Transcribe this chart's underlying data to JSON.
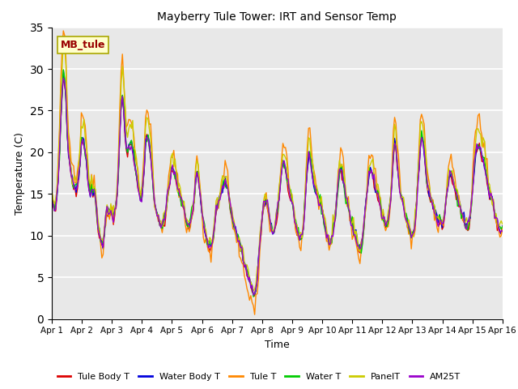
{
  "title": "Mayberry Tule Tower: IRT and Sensor Temp",
  "xlabel": "Time",
  "ylabel": "Temperature (C)",
  "ylim": [
    0,
    35
  ],
  "yticks": [
    0,
    5,
    10,
    15,
    20,
    25,
    30,
    35
  ],
  "annotation_text": "MB_tule",
  "plot_bg_color": "#e8e8e8",
  "grid_color": "white",
  "series_colors": {
    "Tule Body T": "#dd0000",
    "Water Body T": "#0000dd",
    "Tule T": "#ff8800",
    "Water T": "#00cc00",
    "PanelT": "#cccc00",
    "AM25T": "#9900cc"
  },
  "xtick_labels": [
    "Apr 1",
    "Apr 2",
    "Apr 3",
    "Apr 4",
    "Apr 5",
    "Apr 6",
    "Apr 7",
    "Apr 8",
    "Apr 9",
    "Apr 10",
    "Apr 11",
    "Apr 12",
    "Apr 13",
    "Apr 14",
    "Apr 15",
    "Apr 16"
  ],
  "base_pattern": [
    14.5,
    13.5,
    13.0,
    13.5,
    15.0,
    17.0,
    20.0,
    24.0,
    27.0,
    29.2,
    28.5,
    26.5,
    22.0,
    19.5,
    18.5,
    17.5,
    16.5,
    16.0,
    15.5,
    15.0,
    16.0,
    17.0,
    18.5,
    21.0,
    21.5,
    21.0,
    20.0,
    19.0,
    17.0,
    15.5,
    15.0,
    15.5,
    15.0,
    15.5,
    14.5,
    13.0,
    11.0,
    10.0,
    9.5,
    9.0,
    9.0,
    10.5,
    12.0,
    13.0,
    12.5,
    12.5,
    13.0,
    12.5,
    12.0,
    12.5,
    13.5,
    15.0,
    18.0,
    22.0,
    25.5,
    26.5,
    25.0,
    22.5,
    20.5,
    20.0,
    20.5,
    20.5,
    21.0,
    20.0,
    19.0,
    18.0,
    17.0,
    16.0,
    15.0,
    14.0,
    14.5,
    16.0,
    18.0,
    21.0,
    22.0,
    21.5,
    20.5,
    19.5,
    18.0,
    15.5,
    14.0,
    13.0,
    12.5,
    12.0,
    11.5,
    11.0,
    11.0,
    11.5,
    12.0,
    13.0,
    14.5,
    15.5,
    16.5,
    17.5,
    18.0,
    17.5,
    17.0,
    16.5,
    15.5,
    15.0,
    14.5,
    14.0,
    13.5,
    13.0,
    12.0,
    11.5,
    11.0,
    11.0,
    11.5,
    12.0,
    13.0,
    14.5,
    16.5,
    17.5,
    17.0,
    15.5,
    14.0,
    12.5,
    11.5,
    10.5,
    10.0,
    9.5,
    9.0,
    8.5,
    8.5,
    9.0,
    10.0,
    11.5,
    13.0,
    13.5,
    14.0,
    14.5,
    15.0,
    15.5,
    16.0,
    16.5,
    16.0,
    15.5,
    14.5,
    13.5,
    12.5,
    11.5,
    11.0,
    10.5,
    10.0,
    9.5,
    9.0,
    8.5,
    8.0,
    7.0,
    6.5,
    6.0,
    5.5,
    5.0,
    4.5,
    4.0,
    3.5,
    3.0,
    2.8,
    3.5,
    5.0,
    7.0,
    9.0,
    10.5,
    12.0,
    13.5,
    14.0,
    14.0,
    13.5,
    12.5,
    11.5,
    11.0,
    10.5,
    10.5,
    11.0,
    12.0,
    13.0,
    14.5,
    16.0,
    17.5,
    18.5,
    18.5,
    18.0,
    17.0,
    16.0,
    15.0,
    14.5,
    14.0,
    13.5,
    12.0,
    11.0,
    10.5,
    10.0,
    9.5,
    9.5,
    10.0,
    11.0,
    13.5,
    16.0,
    18.0,
    19.5,
    19.5,
    18.5,
    17.0,
    16.0,
    15.5,
    15.0,
    14.5,
    14.0,
    14.0,
    13.5,
    12.5,
    11.5,
    10.5,
    10.0,
    9.5,
    9.0,
    9.0,
    9.5,
    10.5,
    11.5,
    12.5,
    14.5,
    16.0,
    17.5,
    18.0,
    17.5,
    16.5,
    15.5,
    14.5,
    14.0,
    13.5,
    12.5,
    11.5,
    11.0,
    10.5,
    10.0,
    9.5,
    9.0,
    8.5,
    8.0,
    8.5,
    9.5,
    11.0,
    12.5,
    14.0,
    15.5,
    17.0,
    17.5,
    17.5,
    17.0,
    16.5,
    15.5,
    15.0,
    14.5,
    14.0,
    13.5,
    12.5,
    12.0,
    11.5,
    11.0,
    11.0,
    11.5,
    13.0,
    14.5,
    16.5,
    19.5,
    21.0,
    20.5,
    18.5,
    17.0,
    15.5,
    14.5,
    14.0,
    13.5,
    12.5,
    12.0,
    11.5,
    11.0,
    10.5,
    10.0,
    10.0,
    10.5,
    11.5,
    13.5,
    16.0,
    18.0,
    20.5,
    21.5,
    21.0,
    20.0,
    18.5,
    16.5,
    15.5,
    15.0,
    14.5,
    14.0,
    13.5,
    13.0,
    12.5,
    12.0,
    11.5,
    11.5,
    11.5,
    11.0,
    11.5,
    12.5,
    14.0,
    15.5,
    16.5,
    17.0,
    17.0,
    16.5,
    16.0,
    15.5,
    15.0,
    14.5,
    14.0,
    13.5,
    12.5,
    12.0,
    11.5,
    11.0,
    11.0,
    11.0,
    11.5,
    12.5,
    14.0,
    16.0,
    18.0,
    19.5,
    20.5,
    20.5,
    20.5,
    20.0,
    19.5,
    19.0,
    18.5,
    17.5,
    16.5,
    15.5,
    15.0,
    14.5,
    14.0,
    13.5,
    12.5,
    12.0,
    11.5,
    11.0,
    10.5,
    10.5,
    11.0
  ]
}
